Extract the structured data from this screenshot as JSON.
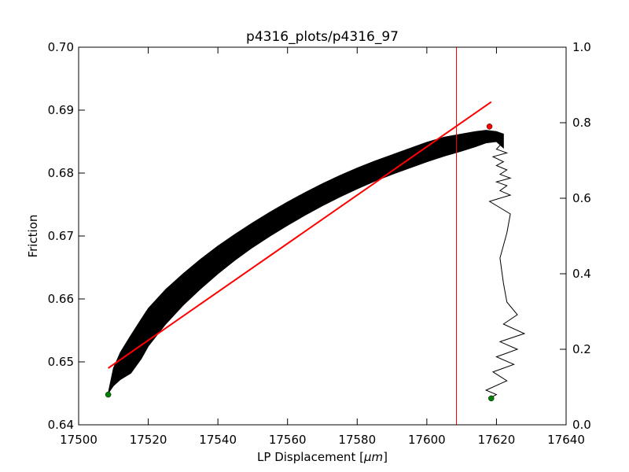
{
  "chart_data": {
    "type": "line",
    "title": "p4316_plots/p4316_97",
    "xlabel": "LP Displacement",
    "xlabel_unit": "μm",
    "ylabel": "Friction",
    "xlim": [
      17500,
      17640
    ],
    "ylim": [
      0.64,
      0.7
    ],
    "y2lim": [
      0.0,
      1.0
    ],
    "grid": false,
    "x_ticks": [
      "17500",
      "17520",
      "17540",
      "17560",
      "17580",
      "17600",
      "17620",
      "17640"
    ],
    "y_ticks": [
      "0.64",
      "0.65",
      "0.66",
      "0.67",
      "0.68",
      "0.69",
      "0.70"
    ],
    "y2_ticks": [
      "0.0",
      "0.2",
      "0.4",
      "0.6",
      "0.8",
      "1.0"
    ],
    "series": [
      {
        "color": "#000000",
        "style": "band",
        "x": [
          17508.5,
          17510,
          17512,
          17515,
          17518,
          17520,
          17525,
          17530,
          17535,
          17540,
          17545,
          17550,
          17555,
          17560,
          17565,
          17570,
          17575,
          17580,
          17585,
          17590,
          17595,
          17600,
          17605,
          17610,
          17614,
          17617,
          17620,
          17622
        ],
        "upper": [
          0.645,
          0.649,
          0.6515,
          0.6542,
          0.6568,
          0.6585,
          0.6615,
          0.664,
          0.6663,
          0.6684,
          0.6703,
          0.6721,
          0.6738,
          0.6754,
          0.6769,
          0.6783,
          0.6796,
          0.6808,
          0.6819,
          0.6829,
          0.6839,
          0.6849,
          0.6857,
          0.6862,
          0.6866,
          0.6868,
          0.6866,
          0.6862
        ],
        "lower": [
          0.645,
          0.6462,
          0.6472,
          0.6482,
          0.6505,
          0.6525,
          0.656,
          0.659,
          0.6616,
          0.664,
          0.6662,
          0.6682,
          0.67,
          0.6717,
          0.6733,
          0.6748,
          0.6762,
          0.6775,
          0.6787,
          0.6798,
          0.6808,
          0.6818,
          0.6827,
          0.6835,
          0.6842,
          0.6848,
          0.685,
          0.684
        ]
      },
      {
        "color": "#000000",
        "style": "line",
        "x": [
          17622,
          17620,
          17623,
          17619,
          17622,
          17620,
          17623,
          17621,
          17624,
          17620,
          17623,
          17621,
          17624,
          17618,
          17621,
          17624,
          17623,
          17621,
          17622,
          17623,
          17626,
          17622,
          17628,
          17621,
          17626,
          17620,
          17625,
          17619,
          17623,
          17617,
          17620,
          17618
        ],
        "y": [
          0.685,
          0.6838,
          0.6832,
          0.6826,
          0.6818,
          0.6812,
          0.6805,
          0.6798,
          0.6792,
          0.6786,
          0.678,
          0.6772,
          0.6765,
          0.6755,
          0.6745,
          0.6735,
          0.6705,
          0.6665,
          0.6625,
          0.6595,
          0.6575,
          0.656,
          0.6545,
          0.6532,
          0.652,
          0.6508,
          0.6496,
          0.6484,
          0.647,
          0.6455,
          0.6448,
          0.6442
        ]
      },
      {
        "color": "#ff0000",
        "style": "line",
        "x": [
          17508.5,
          17618.5
        ],
        "y": [
          0.649,
          0.6913
        ]
      }
    ],
    "vline": {
      "x": 17608.5,
      "color": "#ff0000"
    },
    "markers": [
      {
        "x": 17508.5,
        "y": 0.6448,
        "color": "#008000"
      },
      {
        "x": 17618.5,
        "y": 0.6442,
        "color": "#008000"
      },
      {
        "x": 17618.0,
        "y": 0.6874,
        "color": "#ff0000"
      }
    ]
  }
}
